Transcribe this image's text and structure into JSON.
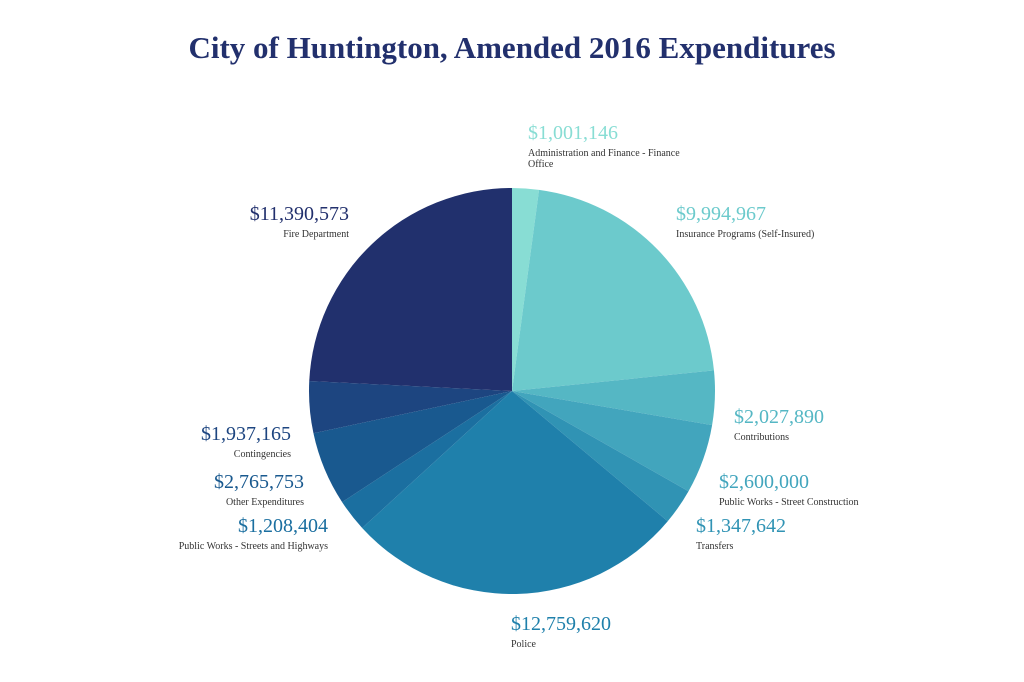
{
  "chart_data": {
    "type": "pie",
    "title": "City of Huntington, Amended 2016 Expenditures",
    "start_angle_deg": 0,
    "direction": "clockwise",
    "slices": [
      {
        "label": "Administration and Finance - Finance Office",
        "value": 1001146,
        "display": "$1,001,146",
        "color": "#88ddd4"
      },
      {
        "label": "Insurance Programs (Self-Insured)",
        "value": 9994967,
        "display": "$9,994,967",
        "color": "#6ccacc"
      },
      {
        "label": "Contributions",
        "value": 2027890,
        "display": "$2,027,890",
        "color": "#55b7c4"
      },
      {
        "label": "Public Works - Street Construction",
        "value": 2600000,
        "display": "$2,600,000",
        "color": "#42a5bd"
      },
      {
        "label": "Transfers",
        "value": 1347642,
        "display": "$1,347,642",
        "color": "#3093b4"
      },
      {
        "label": "Police",
        "value": 12759620,
        "display": "$12,759,620",
        "color": "#1f80ab"
      },
      {
        "label": "Public Works - Streets and Highways",
        "value": 1208404,
        "display": "$1,208,404",
        "color": "#1b6fa0"
      },
      {
        "label": "Other Expenditures",
        "value": 2765753,
        "display": "$2,765,753",
        "color": "#19598f"
      },
      {
        "label": "Contingencies",
        "value": 1937165,
        "display": "$1,937,165",
        "color": "#1d4580"
      },
      {
        "label": "Fire Department",
        "value": 11390573,
        "display": "$11,390,573",
        "color": "#21306d"
      }
    ]
  }
}
